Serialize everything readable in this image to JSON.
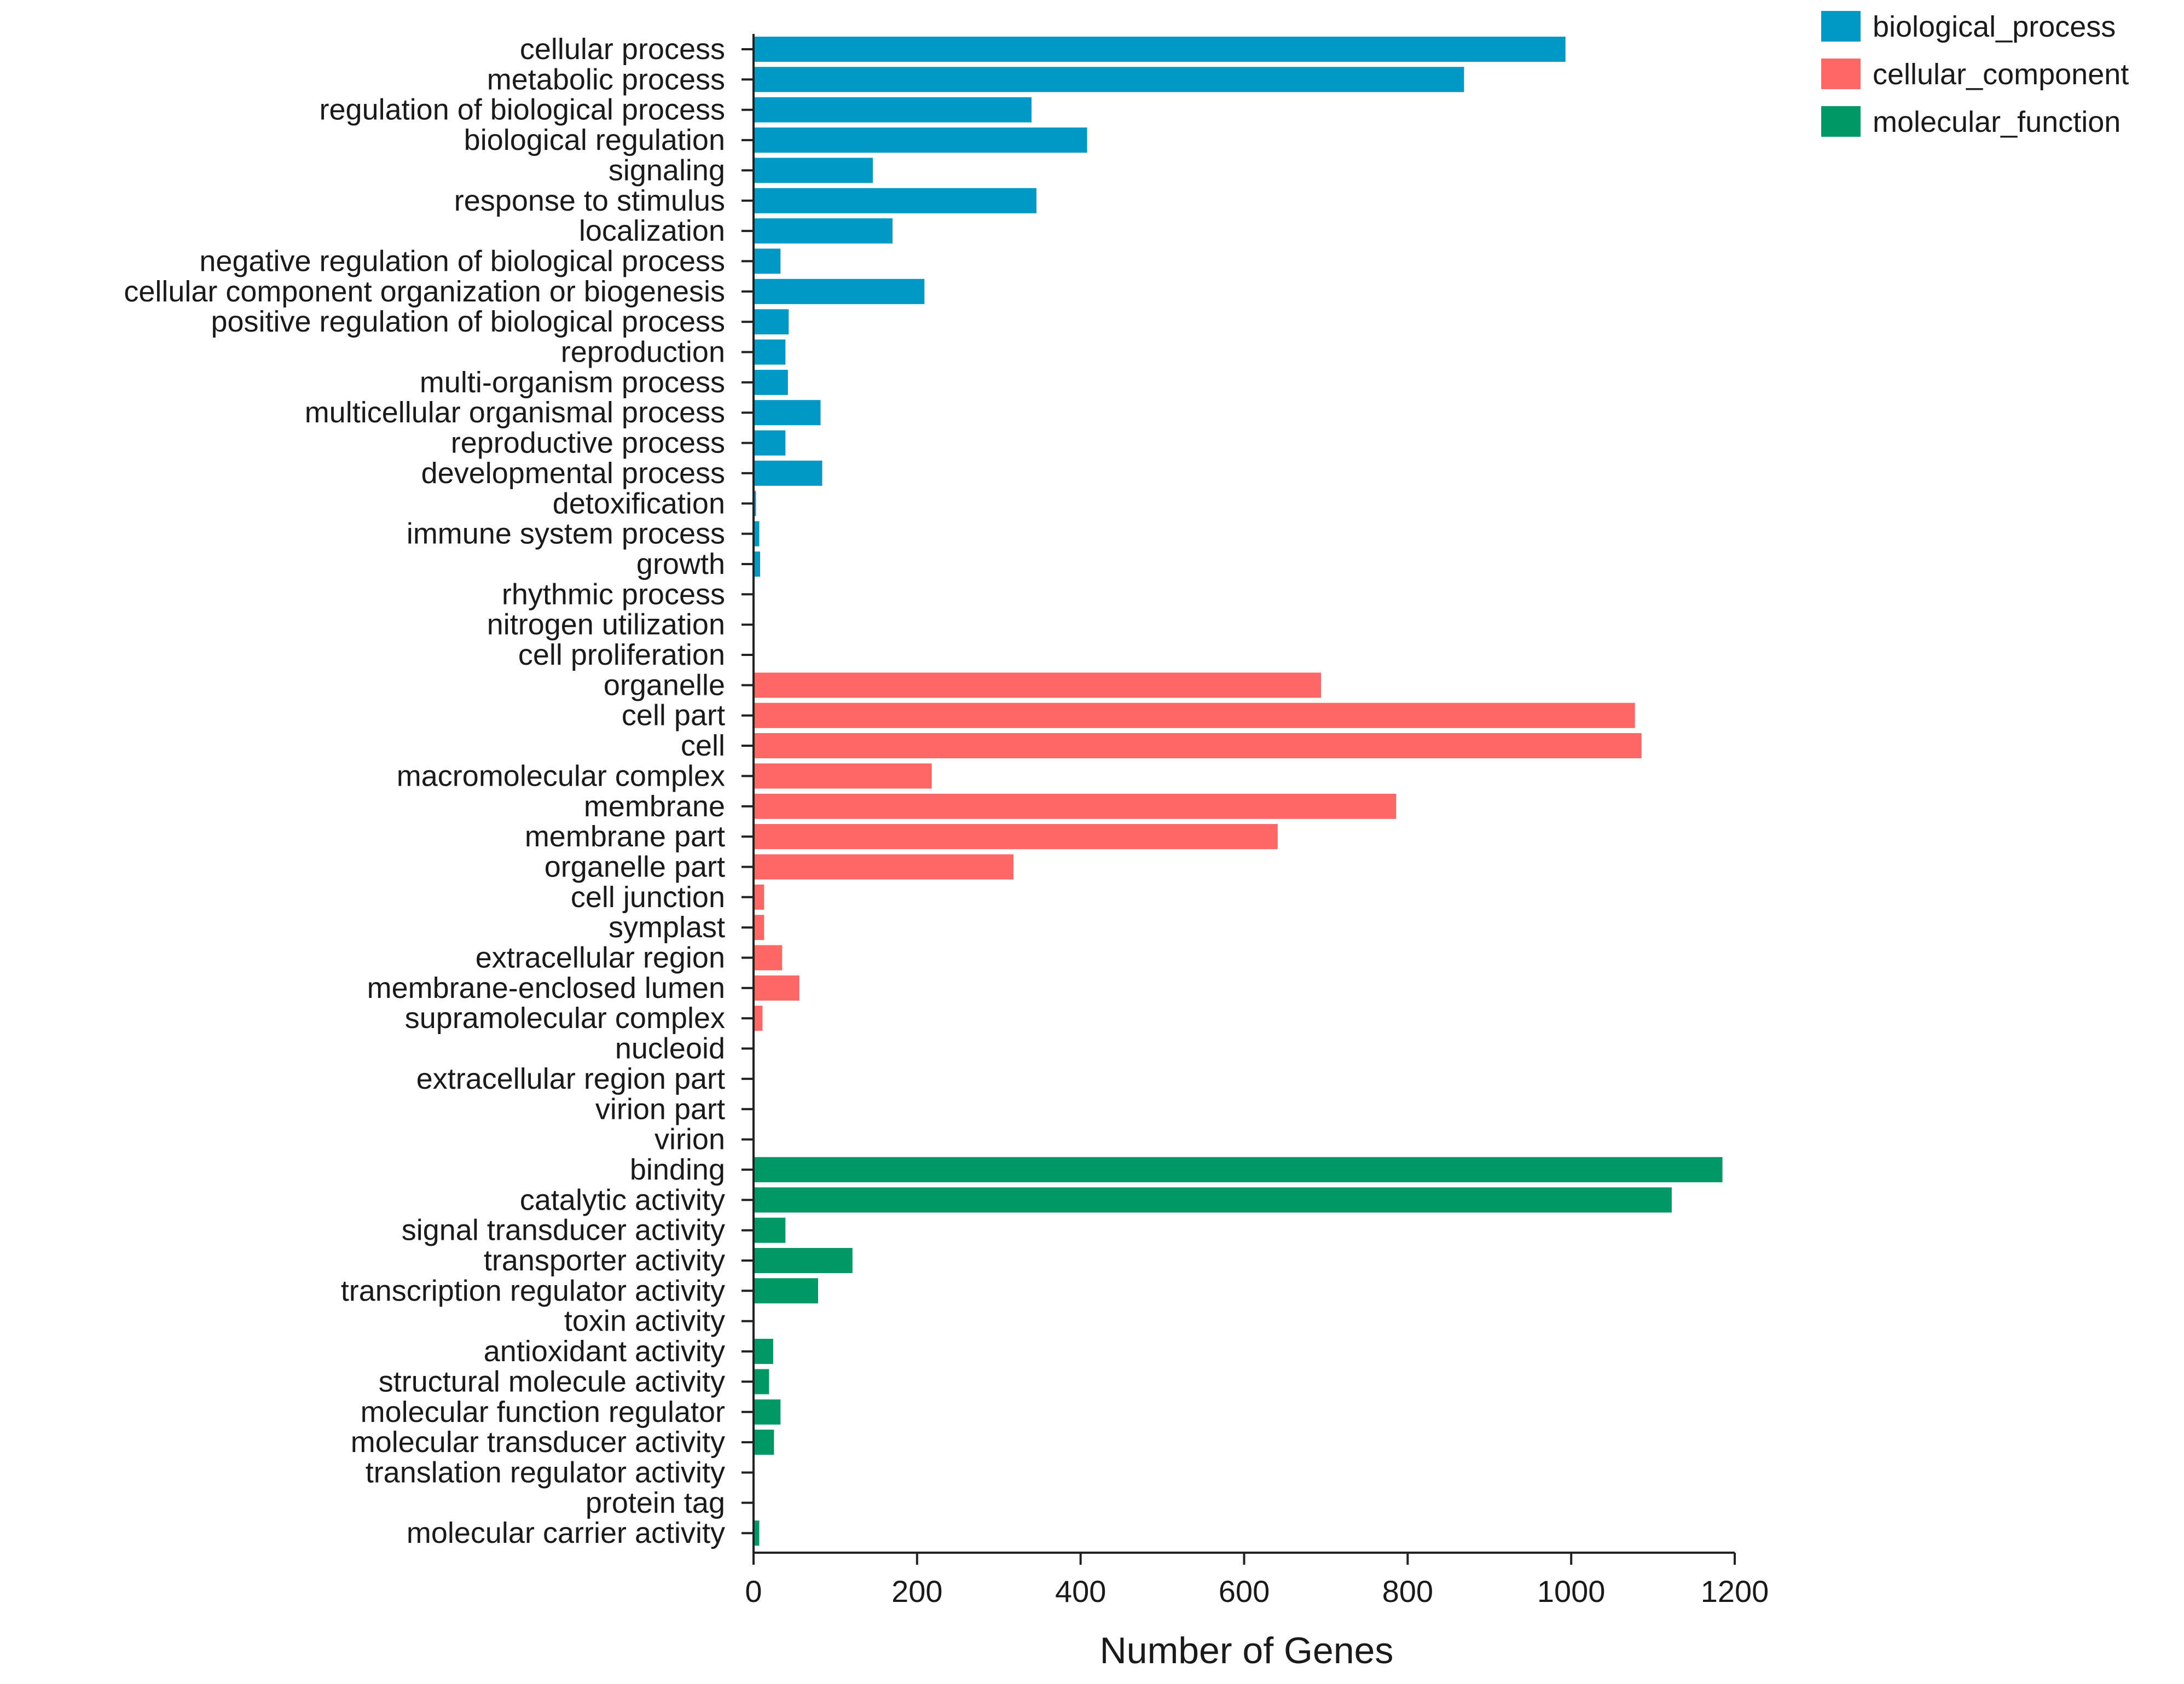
{
  "chart_data": {
    "type": "bar",
    "orientation": "horizontal",
    "xlabel": "Number of Genes",
    "ylabel": "",
    "xlim": [
      0,
      1200
    ],
    "xticks": [
      0,
      200,
      400,
      600,
      800,
      1000,
      1200
    ],
    "grid": false,
    "legend_position": "top-right",
    "series": [
      {
        "name": "biological_process",
        "color": "#0099c6",
        "categories": [
          "cellular process",
          "metabolic process",
          "regulation of biological process",
          "biological regulation",
          "signaling",
          "response to stimulus",
          "localization",
          "negative regulation of biological process",
          "cellular component organization or biogenesis",
          "positive regulation of biological process",
          "reproduction",
          "multi-organism process",
          "multicellular organismal process",
          "reproductive process",
          "developmental process",
          "detoxification",
          "immune system process",
          "growth",
          "rhythmic process",
          "nitrogen utilization",
          "cell proliferation"
        ],
        "values": [
          993,
          869,
          340,
          408,
          146,
          346,
          170,
          33,
          209,
          43,
          39,
          42,
          82,
          39,
          84,
          3,
          7,
          8,
          1,
          1,
          1
        ]
      },
      {
        "name": "cellular_component",
        "color": "#ff6666",
        "categories": [
          "organelle",
          "cell part",
          "cell",
          "macromolecular complex",
          "membrane",
          "membrane part",
          "organelle part",
          "cell junction",
          "symplast",
          "extracellular region",
          "membrane-enclosed lumen",
          "supramolecular complex",
          "nucleoid",
          "extracellular region part",
          "virion part",
          "virion"
        ],
        "values": [
          694,
          1078,
          1086,
          218,
          786,
          641,
          318,
          13,
          13,
          35,
          56,
          11,
          1,
          1,
          1,
          1
        ]
      },
      {
        "name": "molecular_function",
        "color": "#009966",
        "categories": [
          "binding",
          "catalytic activity",
          "signal transducer activity",
          "transporter activity",
          "transcription regulator activity",
          "toxin activity",
          "antioxidant activity",
          "structural molecule activity",
          "molecular function regulator",
          "molecular transducer activity",
          "translation regulator activity",
          "protein tag",
          "molecular carrier activity"
        ],
        "values": [
          1185,
          1123,
          39,
          121,
          79,
          1,
          24,
          19,
          33,
          25,
          1,
          1,
          7
        ]
      }
    ]
  }
}
